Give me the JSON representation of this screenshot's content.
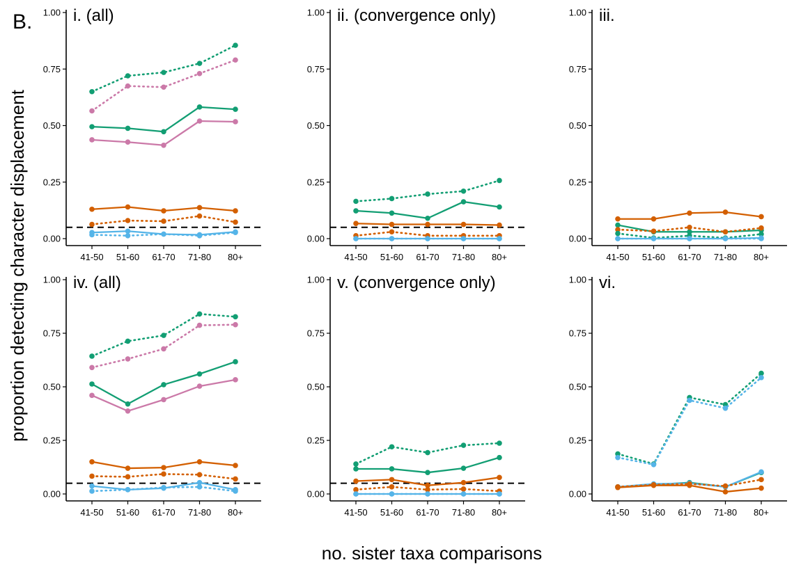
{
  "figure_label": "B.",
  "ylabel": "proportion detecting character displacement",
  "xlabel": "no. sister taxa comparisons",
  "colors": {
    "green": "#129e73",
    "pink": "#cb79a8",
    "orange": "#d35f00",
    "blue": "#55b4e8",
    "reference": "#000000"
  },
  "chart_data": [
    {
      "type": "line",
      "title": "i.  (all)",
      "categories": [
        "41-50",
        "51-60",
        "61-70",
        "71-80",
        "80+"
      ],
      "ylim": [
        0,
        1
      ],
      "yticks": [
        "0.00",
        "0.25",
        "0.50",
        "0.75",
        "1.00"
      ],
      "reference_line": 0.05,
      "series": [
        {
          "color": "green",
          "style": "dotted",
          "values": [
            0.65,
            0.72,
            0.735,
            0.775,
            0.855
          ]
        },
        {
          "color": "pink",
          "style": "dotted",
          "values": [
            0.565,
            0.675,
            0.67,
            0.73,
            0.79
          ]
        },
        {
          "color": "green",
          "style": "solid",
          "values": [
            0.495,
            0.488,
            0.473,
            0.582,
            0.572
          ]
        },
        {
          "color": "pink",
          "style": "solid",
          "values": [
            0.437,
            0.427,
            0.413,
            0.52,
            0.517
          ]
        },
        {
          "color": "orange",
          "style": "solid",
          "values": [
            0.13,
            0.14,
            0.123,
            0.137,
            0.123
          ]
        },
        {
          "color": "orange",
          "style": "dotted",
          "values": [
            0.063,
            0.08,
            0.077,
            0.1,
            0.073
          ]
        },
        {
          "color": "blue",
          "style": "solid",
          "values": [
            0.027,
            0.033,
            0.02,
            0.017,
            0.03
          ]
        },
        {
          "color": "blue",
          "style": "dotted",
          "values": [
            0.017,
            0.013,
            0.02,
            0.013,
            0.027
          ]
        }
      ]
    },
    {
      "type": "line",
      "title": "ii.  (convergence only)",
      "categories": [
        "41-50",
        "51-60",
        "61-70",
        "71-80",
        "80+"
      ],
      "ylim": [
        0,
        1
      ],
      "yticks": [
        "0.00",
        "0.25",
        "0.50",
        "0.75",
        "1.00"
      ],
      "reference_line": 0.05,
      "series": [
        {
          "color": "green",
          "style": "dotted",
          "values": [
            0.165,
            0.177,
            0.197,
            0.21,
            0.257
          ]
        },
        {
          "color": "green",
          "style": "solid",
          "values": [
            0.123,
            0.113,
            0.09,
            0.163,
            0.14
          ]
        },
        {
          "color": "orange",
          "style": "solid",
          "values": [
            0.067,
            0.063,
            0.063,
            0.063,
            0.06
          ]
        },
        {
          "color": "orange",
          "style": "dotted",
          "values": [
            0.013,
            0.03,
            0.013,
            0.013,
            0.013
          ]
        },
        {
          "color": "blue",
          "style": "solid",
          "values": [
            0,
            0,
            0,
            0,
            0
          ]
        },
        {
          "color": "blue",
          "style": "dotted",
          "values": [
            0,
            0,
            0,
            0,
            0
          ]
        }
      ]
    },
    {
      "type": "line",
      "title": "iii.",
      "categories": [
        "41-50",
        "51-60",
        "61-70",
        "71-80",
        "80+"
      ],
      "ylim": [
        0,
        1
      ],
      "yticks": [
        "0.00",
        "0.25",
        "0.50",
        "0.75",
        "1.00"
      ],
      "reference_line": null,
      "series": [
        {
          "color": "orange",
          "style": "solid",
          "values": [
            0.087,
            0.087,
            0.113,
            0.117,
            0.097
          ]
        },
        {
          "color": "green",
          "style": "solid",
          "values": [
            0.06,
            0.03,
            0.03,
            0.03,
            0.037
          ]
        },
        {
          "color": "orange",
          "style": "dotted",
          "values": [
            0.04,
            0.033,
            0.05,
            0.03,
            0.047
          ]
        },
        {
          "color": "green",
          "style": "dotted",
          "values": [
            0.023,
            0.003,
            0.013,
            0.003,
            0.02
          ]
        },
        {
          "color": "blue",
          "style": "solid",
          "values": [
            0,
            0,
            0,
            0,
            0.003
          ]
        },
        {
          "color": "blue",
          "style": "dotted",
          "values": [
            0,
            0,
            0,
            0,
            0
          ]
        }
      ]
    },
    {
      "type": "line",
      "title": "iv. (all)",
      "categories": [
        "41-50",
        "51-60",
        "61-70",
        "71-80",
        "80+"
      ],
      "ylim": [
        0,
        1
      ],
      "yticks": [
        "0.00",
        "0.25",
        "0.50",
        "0.75",
        "1.00"
      ],
      "reference_line": 0.05,
      "series": [
        {
          "color": "green",
          "style": "dotted",
          "values": [
            0.643,
            0.713,
            0.74,
            0.84,
            0.827
          ]
        },
        {
          "color": "pink",
          "style": "dotted",
          "values": [
            0.59,
            0.63,
            0.677,
            0.787,
            0.79
          ]
        },
        {
          "color": "green",
          "style": "solid",
          "values": [
            0.513,
            0.42,
            0.51,
            0.56,
            0.617
          ]
        },
        {
          "color": "pink",
          "style": "solid",
          "values": [
            0.46,
            0.387,
            0.44,
            0.503,
            0.533
          ]
        },
        {
          "color": "orange",
          "style": "solid",
          "values": [
            0.15,
            0.12,
            0.123,
            0.15,
            0.133
          ]
        },
        {
          "color": "orange",
          "style": "dotted",
          "values": [
            0.083,
            0.08,
            0.093,
            0.09,
            0.07
          ]
        },
        {
          "color": "blue",
          "style": "solid",
          "values": [
            0.037,
            0.02,
            0.027,
            0.053,
            0.02
          ]
        },
        {
          "color": "blue",
          "style": "dotted",
          "values": [
            0.013,
            0.02,
            0.03,
            0.033,
            0.013
          ]
        }
      ]
    },
    {
      "type": "line",
      "title": "v.  (convergence only)",
      "categories": [
        "41-50",
        "51-60",
        "61-70",
        "71-80",
        "80+"
      ],
      "ylim": [
        0,
        1
      ],
      "yticks": [
        "0.00",
        "0.25",
        "0.50",
        "0.75",
        "1.00"
      ],
      "reference_line": 0.05,
      "series": [
        {
          "color": "green",
          "style": "dotted",
          "values": [
            0.14,
            0.22,
            0.193,
            0.227,
            0.237
          ]
        },
        {
          "color": "green",
          "style": "solid",
          "values": [
            0.117,
            0.117,
            0.1,
            0.12,
            0.17
          ]
        },
        {
          "color": "orange",
          "style": "solid",
          "values": [
            0.06,
            0.067,
            0.04,
            0.053,
            0.077
          ]
        },
        {
          "color": "orange",
          "style": "dotted",
          "values": [
            0.02,
            0.033,
            0.02,
            0.023,
            0.013
          ]
        },
        {
          "color": "blue",
          "style": "solid",
          "values": [
            0,
            0,
            0,
            0,
            0
          ]
        },
        {
          "color": "blue",
          "style": "dotted",
          "values": [
            0,
            0,
            0,
            0,
            0
          ]
        }
      ]
    },
    {
      "type": "line",
      "title": "vi.",
      "categories": [
        "41-50",
        "51-60",
        "61-70",
        "71-80",
        "80+"
      ],
      "ylim": [
        0,
        1
      ],
      "yticks": [
        "0.00",
        "0.25",
        "0.50",
        "0.75",
        "1.00"
      ],
      "reference_line": null,
      "series": [
        {
          "color": "green",
          "style": "dotted",
          "values": [
            0.187,
            0.14,
            0.45,
            0.417,
            0.563
          ]
        },
        {
          "color": "blue",
          "style": "dotted",
          "values": [
            0.17,
            0.137,
            0.437,
            0.4,
            0.543
          ]
        },
        {
          "color": "green",
          "style": "solid",
          "values": [
            0.033,
            0.043,
            0.053,
            0.033,
            0.1
          ]
        },
        {
          "color": "blue",
          "style": "solid",
          "values": [
            0.033,
            0.047,
            0.05,
            0.033,
            0.103
          ]
        },
        {
          "color": "orange",
          "style": "dotted",
          "values": [
            0.033,
            0.043,
            0.047,
            0.037,
            0.067
          ]
        },
        {
          "color": "orange",
          "style": "solid",
          "values": [
            0.03,
            0.04,
            0.04,
            0.01,
            0.027
          ]
        }
      ]
    }
  ]
}
